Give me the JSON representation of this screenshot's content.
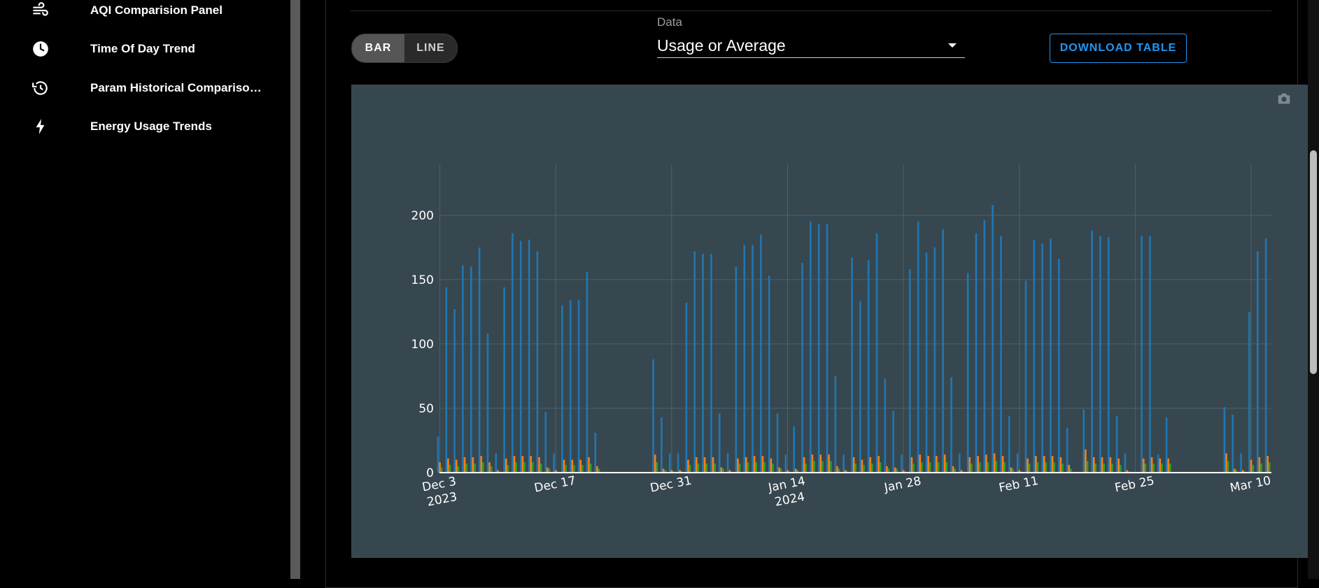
{
  "sidebar": {
    "items": [
      {
        "label": "AQI Comparision Panel",
        "icon": "wind-icon"
      },
      {
        "label": "Time Of Day Trend",
        "icon": "clock-icon"
      },
      {
        "label": "Param Historical Compariso…",
        "icon": "history-icon"
      },
      {
        "label": "Energy Usage Trends",
        "icon": "lightning-bolt-icon"
      }
    ]
  },
  "controls": {
    "toggle": {
      "bar_label": "BAR",
      "line_label": "LINE",
      "selected": "BAR"
    },
    "data_select": {
      "label": "Data",
      "value": "Usage or Average"
    },
    "download_label": "DOWNLOAD TABLE"
  },
  "colors": {
    "accent": "#2196f3",
    "chart_bg": "#37474f",
    "series_blue": "#1f77b4",
    "series_orange": "#ff7f0e",
    "series_green": "#2ca02c"
  },
  "chart_data": {
    "type": "bar",
    "x_axis": "date",
    "x_start": "2023-12-03",
    "x_end": "2024-03-12",
    "xticks": [
      {
        "date": "2023-12-03",
        "label": "Dec 3",
        "sublabel": "2023"
      },
      {
        "date": "2023-12-17",
        "label": "Dec 17",
        "sublabel": ""
      },
      {
        "date": "2023-12-31",
        "label": "Dec 31",
        "sublabel": ""
      },
      {
        "date": "2024-01-14",
        "label": "Jan 14",
        "sublabel": "2024"
      },
      {
        "date": "2024-01-28",
        "label": "Jan 28",
        "sublabel": ""
      },
      {
        "date": "2024-02-11",
        "label": "Feb 11",
        "sublabel": ""
      },
      {
        "date": "2024-02-25",
        "label": "Feb 25",
        "sublabel": ""
      },
      {
        "date": "2024-03-10",
        "label": "Mar 10",
        "sublabel": ""
      }
    ],
    "ylim": [
      0,
      220
    ],
    "yticks": [
      0,
      50,
      100,
      150,
      200
    ],
    "grid": true,
    "series": [
      {
        "color": "#1f77b4",
        "points": [
          [
            "2023-12-03",
            28
          ],
          [
            "2023-12-04",
            144
          ],
          [
            "2023-12-05",
            127
          ],
          [
            "2023-12-06",
            161
          ],
          [
            "2023-12-07",
            160
          ],
          [
            "2023-12-08",
            175
          ],
          [
            "2023-12-09",
            108
          ],
          [
            "2023-12-10",
            15
          ],
          [
            "2023-12-11",
            144
          ],
          [
            "2023-12-12",
            186
          ],
          [
            "2023-12-13",
            180
          ],
          [
            "2023-12-14",
            181
          ],
          [
            "2023-12-15",
            172
          ],
          [
            "2023-12-16",
            47
          ],
          [
            "2023-12-17",
            15
          ],
          [
            "2023-12-18",
            130
          ],
          [
            "2023-12-19",
            134
          ],
          [
            "2023-12-20",
            134
          ],
          [
            "2023-12-21",
            156
          ],
          [
            "2023-12-22",
            31
          ],
          [
            "2023-12-29",
            88
          ],
          [
            "2023-12-30",
            43
          ],
          [
            "2023-12-31",
            15
          ],
          [
            "2024-01-01",
            15
          ],
          [
            "2024-01-02",
            132
          ],
          [
            "2024-01-03",
            172
          ],
          [
            "2024-01-04",
            170
          ],
          [
            "2024-01-05",
            170
          ],
          [
            "2024-01-06",
            46
          ],
          [
            "2024-01-07",
            15
          ],
          [
            "2024-01-08",
            160
          ],
          [
            "2024-01-09",
            177
          ],
          [
            "2024-01-10",
            177
          ],
          [
            "2024-01-11",
            185
          ],
          [
            "2024-01-12",
            153
          ],
          [
            "2024-01-13",
            46
          ],
          [
            "2024-01-14",
            14
          ],
          [
            "2024-01-15",
            36
          ],
          [
            "2024-01-16",
            163
          ],
          [
            "2024-01-17",
            195
          ],
          [
            "2024-01-18",
            193
          ],
          [
            "2024-01-19",
            193
          ],
          [
            "2024-01-20",
            75
          ],
          [
            "2024-01-21",
            14
          ],
          [
            "2024-01-22",
            167
          ],
          [
            "2024-01-23",
            133
          ],
          [
            "2024-01-24",
            165
          ],
          [
            "2024-01-25",
            186
          ],
          [
            "2024-01-26",
            73
          ],
          [
            "2024-01-27",
            48
          ],
          [
            "2024-01-28",
            14
          ],
          [
            "2024-01-29",
            158
          ],
          [
            "2024-01-30",
            195
          ],
          [
            "2024-01-31",
            171
          ],
          [
            "2024-02-01",
            175
          ],
          [
            "2024-02-02",
            189
          ],
          [
            "2024-02-03",
            74
          ],
          [
            "2024-02-04",
            15
          ],
          [
            "2024-02-05",
            155
          ],
          [
            "2024-02-06",
            186
          ],
          [
            "2024-02-07",
            196
          ],
          [
            "2024-02-08",
            208
          ],
          [
            "2024-02-09",
            184
          ],
          [
            "2024-02-10",
            44
          ],
          [
            "2024-02-11",
            15
          ],
          [
            "2024-02-12",
            149
          ],
          [
            "2024-02-13",
            181
          ],
          [
            "2024-02-14",
            178
          ],
          [
            "2024-02-15",
            182
          ],
          [
            "2024-02-16",
            166
          ],
          [
            "2024-02-17",
            35
          ],
          [
            "2024-02-19",
            49
          ],
          [
            "2024-02-20",
            188
          ],
          [
            "2024-02-21",
            184
          ],
          [
            "2024-02-22",
            183
          ],
          [
            "2024-02-23",
            44
          ],
          [
            "2024-02-24",
            15
          ],
          [
            "2024-02-26",
            184
          ],
          [
            "2024-02-27",
            184
          ],
          [
            "2024-02-28",
            14
          ],
          [
            "2024-02-29",
            43
          ],
          [
            "2024-03-07",
            51
          ],
          [
            "2024-03-08",
            45
          ],
          [
            "2024-03-09",
            15
          ],
          [
            "2024-03-10",
            125
          ],
          [
            "2024-03-11",
            172
          ],
          [
            "2024-03-12",
            182
          ]
        ]
      },
      {
        "color": "#ff7f0e",
        "points": [
          [
            "2023-12-03",
            8
          ],
          [
            "2023-12-04",
            11
          ],
          [
            "2023-12-05",
            10
          ],
          [
            "2023-12-06",
            12
          ],
          [
            "2023-12-07",
            12
          ],
          [
            "2023-12-08",
            13
          ],
          [
            "2023-12-09",
            8
          ],
          [
            "2023-12-10",
            2
          ],
          [
            "2023-12-11",
            11
          ],
          [
            "2023-12-12",
            13
          ],
          [
            "2023-12-13",
            13
          ],
          [
            "2023-12-14",
            13
          ],
          [
            "2023-12-15",
            12
          ],
          [
            "2023-12-16",
            4
          ],
          [
            "2023-12-17",
            2
          ],
          [
            "2023-12-18",
            10
          ],
          [
            "2023-12-19",
            10
          ],
          [
            "2023-12-20",
            10
          ],
          [
            "2023-12-21",
            12
          ],
          [
            "2023-12-22",
            5
          ],
          [
            "2023-12-29",
            14
          ],
          [
            "2023-12-30",
            3
          ],
          [
            "2023-12-31",
            2
          ],
          [
            "2024-01-01",
            2
          ],
          [
            "2024-01-02",
            10
          ],
          [
            "2024-01-03",
            12
          ],
          [
            "2024-01-04",
            12
          ],
          [
            "2024-01-05",
            12
          ],
          [
            "2024-01-06",
            4
          ],
          [
            "2024-01-07",
            2
          ],
          [
            "2024-01-08",
            11
          ],
          [
            "2024-01-09",
            12
          ],
          [
            "2024-01-10",
            13
          ],
          [
            "2024-01-11",
            13
          ],
          [
            "2024-01-12",
            11
          ],
          [
            "2024-01-13",
            4
          ],
          [
            "2024-01-14",
            2
          ],
          [
            "2024-01-15",
            3
          ],
          [
            "2024-01-16",
            12
          ],
          [
            "2024-01-17",
            14
          ],
          [
            "2024-01-18",
            14
          ],
          [
            "2024-01-19",
            14
          ],
          [
            "2024-01-20",
            5
          ],
          [
            "2024-01-21",
            2
          ],
          [
            "2024-01-22",
            12
          ],
          [
            "2024-01-23",
            10
          ],
          [
            "2024-01-24",
            12
          ],
          [
            "2024-01-25",
            13
          ],
          [
            "2024-01-26",
            5
          ],
          [
            "2024-01-27",
            4
          ],
          [
            "2024-01-28",
            2
          ],
          [
            "2024-01-29",
            12
          ],
          [
            "2024-01-30",
            14
          ],
          [
            "2024-01-31",
            13
          ],
          [
            "2024-02-01",
            13
          ],
          [
            "2024-02-02",
            14
          ],
          [
            "2024-02-03",
            5
          ],
          [
            "2024-02-04",
            2
          ],
          [
            "2024-02-05",
            12
          ],
          [
            "2024-02-06",
            13
          ],
          [
            "2024-02-07",
            14
          ],
          [
            "2024-02-08",
            15
          ],
          [
            "2024-02-09",
            13
          ],
          [
            "2024-02-10",
            4
          ],
          [
            "2024-02-11",
            2
          ],
          [
            "2024-02-12",
            11
          ],
          [
            "2024-02-13",
            13
          ],
          [
            "2024-02-14",
            13
          ],
          [
            "2024-02-15",
            13
          ],
          [
            "2024-02-16",
            12
          ],
          [
            "2024-02-17",
            6
          ],
          [
            "2024-02-19",
            18
          ],
          [
            "2024-02-20",
            12
          ],
          [
            "2024-02-21",
            12
          ],
          [
            "2024-02-22",
            12
          ],
          [
            "2024-02-23",
            11
          ],
          [
            "2024-02-24",
            2
          ],
          [
            "2024-02-26",
            11
          ],
          [
            "2024-02-27",
            12
          ],
          [
            "2024-02-28",
            11
          ],
          [
            "2024-02-29",
            11
          ],
          [
            "2024-03-07",
            15
          ],
          [
            "2024-03-08",
            3
          ],
          [
            "2024-03-09",
            2
          ],
          [
            "2024-03-10",
            10
          ],
          [
            "2024-03-11",
            12
          ],
          [
            "2024-03-12",
            13
          ]
        ]
      },
      {
        "color": "#2ca02c",
        "points": [
          [
            "2023-12-03",
            4
          ],
          [
            "2023-12-04",
            6
          ],
          [
            "2023-12-05",
            5
          ],
          [
            "2023-12-06",
            7
          ],
          [
            "2023-12-07",
            7
          ],
          [
            "2023-12-08",
            8
          ],
          [
            "2023-12-09",
            5
          ],
          [
            "2023-12-10",
            1
          ],
          [
            "2023-12-11",
            6
          ],
          [
            "2023-12-12",
            8
          ],
          [
            "2023-12-13",
            8
          ],
          [
            "2023-12-14",
            8
          ],
          [
            "2023-12-15",
            7
          ],
          [
            "2023-12-16",
            3
          ],
          [
            "2023-12-17",
            1
          ],
          [
            "2023-12-18",
            6
          ],
          [
            "2023-12-19",
            6
          ],
          [
            "2023-12-20",
            6
          ],
          [
            "2023-12-21",
            7
          ],
          [
            "2023-12-22",
            3
          ],
          [
            "2023-12-29",
            8
          ],
          [
            "2023-12-30",
            2
          ],
          [
            "2023-12-31",
            1
          ],
          [
            "2024-01-01",
            1
          ],
          [
            "2024-01-02",
            6
          ],
          [
            "2024-01-03",
            7
          ],
          [
            "2024-01-04",
            7
          ],
          [
            "2024-01-05",
            7
          ],
          [
            "2024-01-06",
            3
          ],
          [
            "2024-01-07",
            1
          ],
          [
            "2024-01-08",
            7
          ],
          [
            "2024-01-09",
            8
          ],
          [
            "2024-01-10",
            8
          ],
          [
            "2024-01-11",
            8
          ],
          [
            "2024-01-12",
            7
          ],
          [
            "2024-01-13",
            3
          ],
          [
            "2024-01-14",
            1
          ],
          [
            "2024-01-15",
            2
          ],
          [
            "2024-01-16",
            7
          ],
          [
            "2024-01-17",
            9
          ],
          [
            "2024-01-18",
            9
          ],
          [
            "2024-01-19",
            9
          ],
          [
            "2024-01-20",
            3
          ],
          [
            "2024-01-21",
            1
          ],
          [
            "2024-01-22",
            7
          ],
          [
            "2024-01-23",
            6
          ],
          [
            "2024-01-24",
            7
          ],
          [
            "2024-01-25",
            8
          ],
          [
            "2024-01-26",
            3
          ],
          [
            "2024-01-27",
            3
          ],
          [
            "2024-01-28",
            1
          ],
          [
            "2024-01-29",
            7
          ],
          [
            "2024-01-30",
            8
          ],
          [
            "2024-01-31",
            8
          ],
          [
            "2024-02-01",
            8
          ],
          [
            "2024-02-02",
            8
          ],
          [
            "2024-02-03",
            3
          ],
          [
            "2024-02-04",
            1
          ],
          [
            "2024-02-05",
            7
          ],
          [
            "2024-02-06",
            8
          ],
          [
            "2024-02-07",
            8
          ],
          [
            "2024-02-08",
            9
          ],
          [
            "2024-02-09",
            8
          ],
          [
            "2024-02-10",
            3
          ],
          [
            "2024-02-11",
            1
          ],
          [
            "2024-02-12",
            7
          ],
          [
            "2024-02-13",
            8
          ],
          [
            "2024-02-14",
            8
          ],
          [
            "2024-02-15",
            8
          ],
          [
            "2024-02-16",
            7
          ],
          [
            "2024-02-17",
            3
          ],
          [
            "2024-02-19",
            9
          ],
          [
            "2024-02-20",
            7
          ],
          [
            "2024-02-21",
            7
          ],
          [
            "2024-02-22",
            7
          ],
          [
            "2024-02-23",
            6
          ],
          [
            "2024-02-24",
            1
          ],
          [
            "2024-02-26",
            7
          ],
          [
            "2024-02-27",
            7
          ],
          [
            "2024-02-28",
            7
          ],
          [
            "2024-02-29",
            7
          ],
          [
            "2024-03-07",
            9
          ],
          [
            "2024-03-08",
            2
          ],
          [
            "2024-03-09",
            1
          ],
          [
            "2024-03-10",
            6
          ],
          [
            "2024-03-11",
            7
          ],
          [
            "2024-03-12",
            8
          ]
        ]
      }
    ]
  }
}
